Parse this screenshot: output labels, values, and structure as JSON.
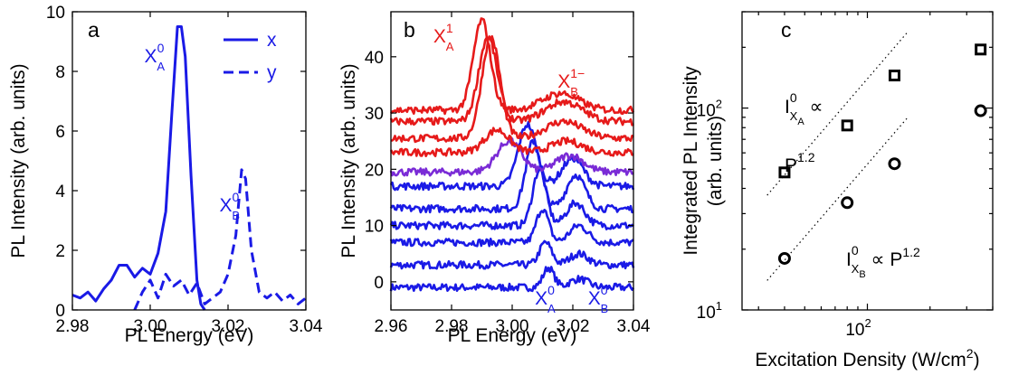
{
  "chart_data": [
    {
      "panel": "a",
      "type": "line",
      "xlabel": "PL Energy (eV)",
      "ylabel": "PL Intensity (arb. units)",
      "xlim": [
        2.98,
        3.04
      ],
      "ylim": [
        0,
        10
      ],
      "x_ticks": [
        2.98,
        3.0,
        3.02,
        3.04
      ],
      "x_tick_labels": [
        "2.98",
        "3.00",
        "3.02",
        "3.04"
      ],
      "y_ticks": [
        0,
        2,
        4,
        6,
        8,
        10
      ],
      "y_tick_labels": [
        "0",
        "2",
        "4",
        "6",
        "8",
        "10"
      ],
      "color": "#1a1ae6",
      "legend": {
        "placement": "top-right",
        "entries": [
          "x",
          "y"
        ]
      },
      "series": [
        {
          "name": "x",
          "style": "solid",
          "points": [
            [
              2.98,
              0.5
            ],
            [
              2.982,
              0.4
            ],
            [
              2.984,
              0.6
            ],
            [
              2.986,
              0.3
            ],
            [
              2.988,
              0.7
            ],
            [
              2.99,
              1.0
            ],
            [
              2.992,
              1.5
            ],
            [
              2.994,
              1.5
            ],
            [
              2.996,
              1.1
            ],
            [
              2.998,
              1.4
            ],
            [
              3.0,
              1.2
            ],
            [
              3.002,
              1.9
            ],
            [
              3.004,
              3.3
            ],
            [
              3.0055,
              6.5
            ],
            [
              3.007,
              9.5
            ],
            [
              3.008,
              9.5
            ],
            [
              3.009,
              8.5
            ],
            [
              3.0105,
              4.5
            ],
            [
              3.012,
              1.0
            ],
            [
              3.013,
              0.2
            ],
            [
              3.014,
              0.0
            ]
          ]
        },
        {
          "name": "y",
          "style": "dashed",
          "points": [
            [
              2.996,
              0.0
            ],
            [
              2.998,
              0.6
            ],
            [
              3.0,
              1.0
            ],
            [
              3.002,
              0.4
            ],
            [
              3.004,
              1.2
            ],
            [
              3.006,
              0.8
            ],
            [
              3.008,
              1.0
            ],
            [
              3.01,
              0.5
            ],
            [
              3.012,
              0.9
            ],
            [
              3.014,
              0.2
            ],
            [
              3.016,
              0.4
            ],
            [
              3.018,
              0.6
            ],
            [
              3.02,
              1.2
            ],
            [
              3.022,
              2.5
            ],
            [
              3.0235,
              4.7
            ],
            [
              3.0245,
              4.4
            ],
            [
              3.026,
              2.0
            ],
            [
              3.028,
              0.6
            ],
            [
              3.03,
              0.4
            ],
            [
              3.032,
              0.6
            ],
            [
              3.034,
              0.3
            ],
            [
              3.036,
              0.5
            ],
            [
              3.038,
              0.2
            ],
            [
              3.04,
              0.4
            ]
          ]
        }
      ],
      "annotations": [
        {
          "base": "X",
          "sup": "0",
          "sub": "A",
          "x": 2.9985,
          "y": 8.3
        },
        {
          "base": "X",
          "sup": "0",
          "sub": "B",
          "x": 3.0178,
          "y": 3.3
        }
      ]
    },
    {
      "panel": "b",
      "type": "line",
      "xlabel": "PL Energy (eV)",
      "ylabel": "PL Intensity (arb. units)",
      "xlim": [
        2.96,
        3.04
      ],
      "ylim": [
        -5,
        48
      ],
      "x_ticks": [
        2.96,
        2.98,
        3.0,
        3.02,
        3.04
      ],
      "x_tick_labels": [
        "2.96",
        "2.98",
        "3.00",
        "3.02",
        "3.04"
      ],
      "y_ticks": [
        0,
        10,
        20,
        30,
        40
      ],
      "y_tick_labels": [
        "0",
        "10",
        "20",
        "30",
        "40"
      ],
      "spectra": [
        {
          "offset": -1,
          "color": "#1a1ae6",
          "peaks": [
            [
              3.012,
              3.5,
              0.0018
            ],
            [
              3.022,
              1.5,
              0.003
            ]
          ]
        },
        {
          "offset": 3,
          "color": "#1a1ae6",
          "peaks": [
            [
              3.011,
              4.0,
              0.002
            ],
            [
              3.022,
              2.0,
              0.003
            ]
          ]
        },
        {
          "offset": 7,
          "color": "#1a1ae6",
          "peaks": [
            [
              3.01,
              6.0,
              0.002
            ],
            [
              3.022,
              3.0,
              0.003
            ]
          ]
        },
        {
          "offset": 10,
          "color": "#1a1ae6",
          "peaks": [
            [
              3.009,
              10.0,
              0.0022
            ],
            [
              3.021,
              4.0,
              0.003
            ]
          ]
        },
        {
          "offset": 13,
          "color": "#1a1ae6",
          "peaks": [
            [
              3.007,
              12.0,
              0.0025
            ],
            [
              3.021,
              6.0,
              0.003
            ]
          ]
        },
        {
          "offset": 17,
          "color": "#1a1ae6",
          "peaks": [
            [
              3.005,
              11.0,
              0.003
            ],
            [
              3.02,
              5.0,
              0.0035
            ]
          ]
        },
        {
          "offset": 19.5,
          "color": "#7a2bd6",
          "peaks": [
            [
              2.999,
              5.5,
              0.004
            ],
            [
              3.019,
              3.0,
              0.0045
            ]
          ]
        },
        {
          "offset": 23,
          "color": "#e61a1a",
          "peaks": [
            [
              2.995,
              4.0,
              0.004
            ],
            [
              3.018,
              2.0,
              0.005
            ]
          ]
        },
        {
          "offset": 25.5,
          "color": "#e61a1a",
          "peaks": [
            [
              2.993,
              18.0,
              0.003
            ],
            [
              3.017,
              3.0,
              0.006
            ]
          ]
        },
        {
          "offset": 28.5,
          "color": "#e61a1a",
          "peaks": [
            [
              2.992,
              15.0,
              0.003
            ],
            [
              3.017,
              3.5,
              0.006
            ]
          ]
        },
        {
          "offset": 30.5,
          "color": "#e61a1a",
          "peaks": [
            [
              2.99,
              16.0,
              0.0028
            ],
            [
              3.016,
              3.0,
              0.006
            ]
          ]
        }
      ],
      "annotations": [
        {
          "base": "X",
          "sup": "1",
          "sub": "A",
          "x": 2.974,
          "y": 42.5,
          "color": "#e61a1a"
        },
        {
          "base": "X",
          "sup": "1−",
          "sub": "B",
          "x": 3.015,
          "y": 34.5,
          "color": "#e61a1a"
        },
        {
          "base": "X",
          "sup": "0",
          "sub": "A",
          "x": 3.0075,
          "y": -4.0,
          "color": "#1a1ae6"
        },
        {
          "base": "X",
          "sup": "0",
          "sub": "B",
          "x": 3.025,
          "y": -4.0,
          "color": "#1a1ae6"
        }
      ]
    },
    {
      "panel": "c",
      "type": "scatter",
      "xlabel": "Excitation Density (W/cm²)",
      "ylabel": "Integrated PL Intensity (arb. units)",
      "ylabel_line1": "Integrated PL Intensity",
      "ylabel_line2": "(arb. units)",
      "x_scale": "log",
      "y_scale": "log",
      "xlim": [
        25,
        400
      ],
      "ylim": [
        10,
        300
      ],
      "x_ticks": [
        100
      ],
      "x_tick_label_base": "10",
      "x_tick_label_exp": "2",
      "y_ticks": [
        10,
        100
      ],
      "y_tick_labels": [
        {
          "base": "10",
          "exp": "1"
        },
        {
          "base": "10",
          "exp": "2"
        }
      ],
      "series": [
        {
          "name": "X_A",
          "marker": "square",
          "x": [
            40,
            80,
            135,
            350
          ],
          "y": [
            48,
            82,
            145,
            195
          ]
        },
        {
          "name": "X_B",
          "marker": "circle",
          "x": [
            40,
            80,
            135,
            350
          ],
          "y": [
            18,
            34,
            53,
            97
          ]
        }
      ],
      "fits": [
        {
          "exponent": 1.2,
          "x": [
            33,
            155
          ],
          "y": [
            37,
            236
          ]
        },
        {
          "exponent": 1.2,
          "x": [
            33,
            155
          ],
          "y": [
            14,
            89
          ]
        }
      ],
      "annotations": {
        "fit_A_line1": {
          "base": "I",
          "sup": "0",
          "sub": "X",
          "subsub": "A",
          "tail": " ∝"
        },
        "fit_A_line2": {
          "base": "P",
          "sup": "1.2"
        },
        "fit_B": {
          "base": "I",
          "sup": "0",
          "sub": "X",
          "subsub": "B",
          "tail": " ∝ P",
          "tail_sup": "1.2"
        }
      }
    }
  ]
}
